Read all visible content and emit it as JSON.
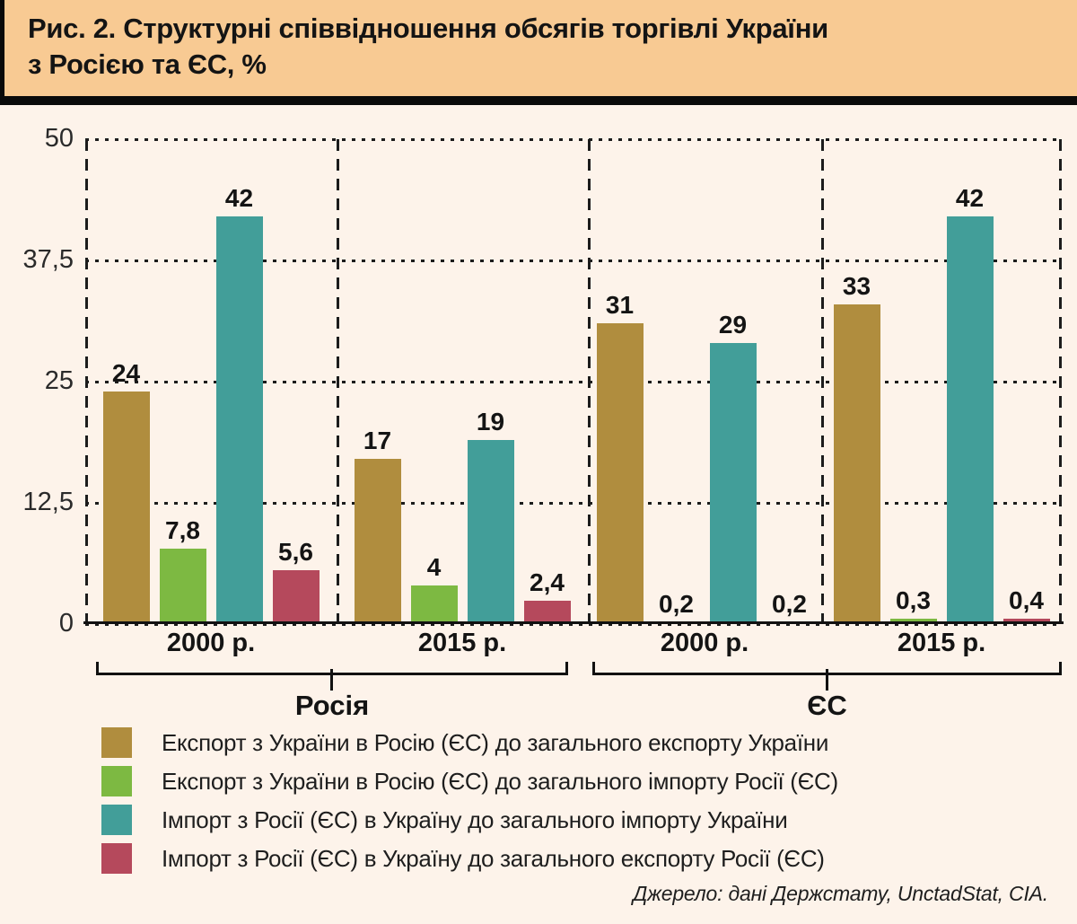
{
  "header": {
    "title_line1": "Рис. 2. Структурні співвідношення обсягів торгівлі України",
    "title_line2": "з Росією та ЄС, %"
  },
  "colors": {
    "header_bg": "#f8ca93",
    "page_bg": "#fdf3ea",
    "line_black": "#111111"
  },
  "chart_data": {
    "type": "bar",
    "title": "Структурні співвідношення обсягів торгівлі України з Росією та ЄС, %",
    "ylim": [
      0,
      50
    ],
    "yticks": [
      {
        "value": 50,
        "label": "50"
      },
      {
        "value": 37.5,
        "label": "37,5"
      },
      {
        "value": 25,
        "label": "25"
      },
      {
        "value": 12.5,
        "label": "12,5"
      },
      {
        "value": 0,
        "label": "0"
      }
    ],
    "grid": "dotted-horizontal, dashed-vertical-group-dividers",
    "legend_position": "bottom-left",
    "series": [
      {
        "name": "Експорт з України в Росію (ЄС) до загального експорту України",
        "color": "#b08d3e"
      },
      {
        "name": "Експорт з України в Росію (ЄС) до загального імпорту Росії (ЄС)",
        "color": "#7db942"
      },
      {
        "name": "Імпорт з Росії (ЄС) в Україну до загального імпорту України",
        "color": "#429e99"
      },
      {
        "name": "Імпорт з Росії (ЄС) в Україну до загального експорту Росії (ЄС)",
        "color": "#b5495c"
      }
    ],
    "regions": [
      {
        "label": "Росія",
        "groups": [
          {
            "label": "2000 р.",
            "values": [
              24,
              7.8,
              42,
              5.6
            ],
            "value_labels": [
              "24",
              "7,8",
              "42",
              "5,6"
            ]
          },
          {
            "label": "2015 р.",
            "values": [
              17,
              4,
              19,
              2.4
            ],
            "value_labels": [
              "17",
              "4",
              "19",
              "2,4"
            ]
          }
        ]
      },
      {
        "label": "ЄС",
        "groups": [
          {
            "label": "2000 р.",
            "values": [
              31,
              0.2,
              29,
              0.2
            ],
            "value_labels": [
              "31",
              "0,2",
              "29",
              "0,2"
            ]
          },
          {
            "label": "2015 р.",
            "values": [
              33,
              0.3,
              42,
              0.4
            ],
            "value_labels": [
              "33",
              "0,3",
              "42",
              "0,4"
            ]
          }
        ]
      }
    ]
  },
  "source": "Джерело: дані Держстату, UnctadStat, CIA."
}
